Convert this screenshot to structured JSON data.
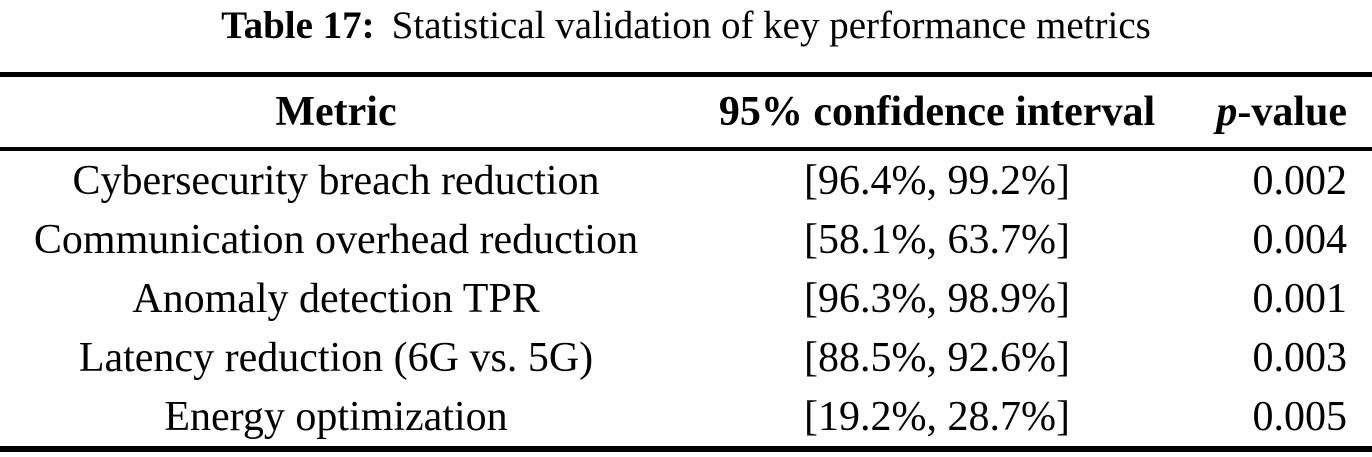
{
  "caption": {
    "label": "Table 17:",
    "text": "Statistical validation of key performance metrics"
  },
  "table": {
    "columns": {
      "metric": "Metric",
      "ci": "95% confidence interval",
      "pvalue_italic": "p",
      "pvalue_rest": "-value"
    },
    "rows": [
      {
        "metric": "Cybersecurity breach reduction",
        "ci": "[96.4%, 99.2%]",
        "p_value": "0.002"
      },
      {
        "metric": "Communication overhead reduction",
        "ci": "[58.1%, 63.7%]",
        "p_value": "0.004"
      },
      {
        "metric": "Anomaly detection TPR",
        "ci": "[96.3%, 98.9%]",
        "p_value": "0.001"
      },
      {
        "metric": "Latency reduction (6G vs. 5G)",
        "ci": "[88.5%, 92.6%]",
        "p_value": "0.003"
      },
      {
        "metric": "Energy optimization",
        "ci": "[19.2%, 28.7%]",
        "p_value": "0.005"
      }
    ]
  },
  "colors": {
    "text": "#000000",
    "background": "#ffffff"
  }
}
